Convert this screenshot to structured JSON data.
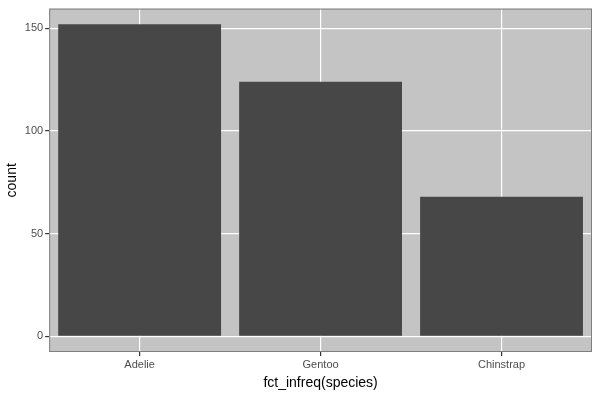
{
  "chart_data": {
    "type": "bar",
    "x_label": "fct_infreq(species)",
    "y_label": "count",
    "categories": [
      "Adelie",
      "Gentoo",
      "Chinstrap"
    ],
    "values": [
      152,
      124,
      68
    ],
    "color": "#474747",
    "ylim": [
      -7.6,
      159.6
    ],
    "yticks": [
      0,
      50,
      100,
      150
    ],
    "grid": true
  }
}
